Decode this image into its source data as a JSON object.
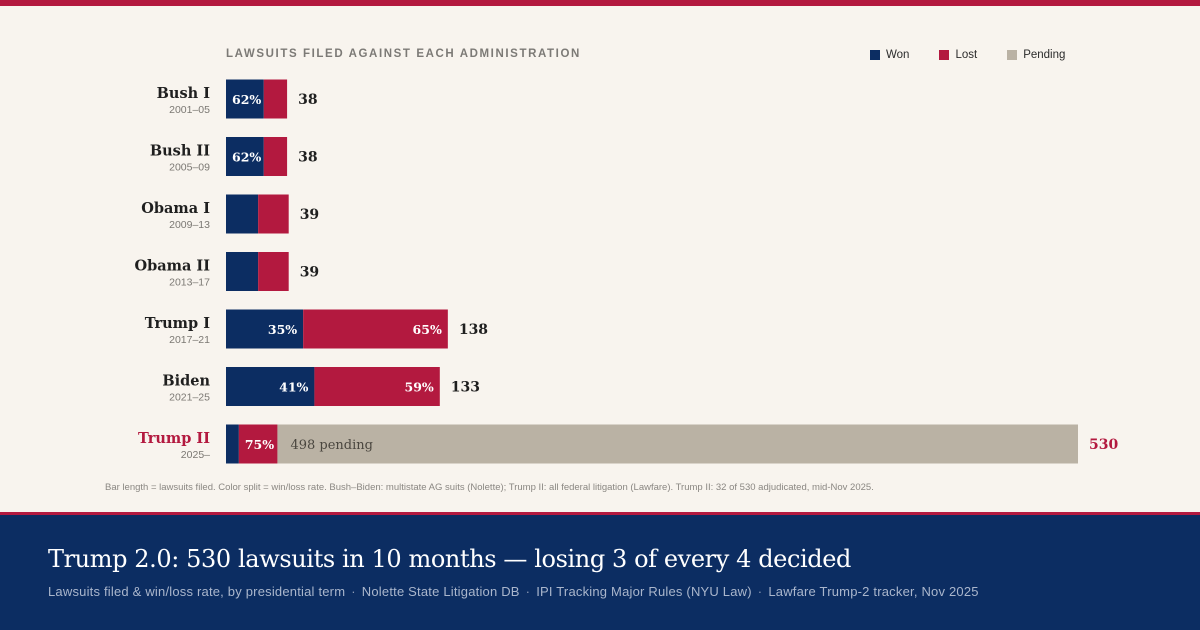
{
  "chart_data": {
    "type": "bar",
    "orientation": "horizontal",
    "stacked": true,
    "title": "LAWSUITS FILED AGAINST EACH ADMINISTRATION",
    "legend": [
      "Won",
      "Lost",
      "Pending"
    ],
    "legend_position": "top-right",
    "colors": {
      "won": "#0c2d62",
      "lost": "#b3193f",
      "pending": "#bab2a4",
      "highlight": "#b3193f"
    },
    "categories": [
      {
        "name": "Bush I",
        "years": "2001–05",
        "total": 38,
        "won": 23.5,
        "lost": 14.5,
        "pending": 0,
        "won_label": "62%",
        "lost_label": "",
        "pending_label": "",
        "highlight": false
      },
      {
        "name": "Bush II",
        "years": "2005–09",
        "total": 38,
        "won": 23.5,
        "lost": 14.5,
        "pending": 0,
        "won_label": "62%",
        "lost_label": "",
        "pending_label": "",
        "highlight": false
      },
      {
        "name": "Obama I",
        "years": "2009–13",
        "total": 39,
        "won": 20,
        "lost": 19,
        "pending": 0,
        "won_label": "",
        "lost_label": "",
        "pending_label": "",
        "highlight": false
      },
      {
        "name": "Obama II",
        "years": "2013–17",
        "total": 39,
        "won": 20,
        "lost": 19,
        "pending": 0,
        "won_label": "",
        "lost_label": "",
        "pending_label": "",
        "highlight": false
      },
      {
        "name": "Trump I",
        "years": "2017–21",
        "total": 138,
        "won": 48,
        "lost": 90,
        "pending": 0,
        "won_label": "35%",
        "lost_label": "65%",
        "pending_label": "",
        "highlight": false
      },
      {
        "name": "Biden",
        "years": "2021–25",
        "total": 133,
        "won": 55,
        "lost": 78,
        "pending": 0,
        "won_label": "41%",
        "lost_label": "59%",
        "pending_label": "",
        "highlight": false
      },
      {
        "name": "Trump II",
        "years": "2025–",
        "total": 530,
        "won": 8,
        "lost": 24,
        "pending": 498,
        "won_label": "",
        "lost_label": "75%",
        "pending_label": "498 pending",
        "highlight": true
      }
    ],
    "xlim": [
      0,
      530
    ],
    "grid": false
  },
  "footnote": "Bar length = lawsuits filed. Color split = win/loss rate. Bush–Biden: multistate AG suits (Nolette); Trump II: all federal litigation (Lawfare). Trump II: 32 of 530 adjudicated, mid-Nov 2025.",
  "headline": "Trump 2.0: 530 lawsuits in 10 months — losing 3 of every 4 decided",
  "subtitle": "Lawsuits filed & win/loss rate, by presidential term",
  "sources": [
    "Nolette State Litigation DB",
    "IPI Tracking Major Rules (NYU Law)",
    "Lawfare Trump-2 tracker, Nov 2025"
  ],
  "source_separator": "·"
}
